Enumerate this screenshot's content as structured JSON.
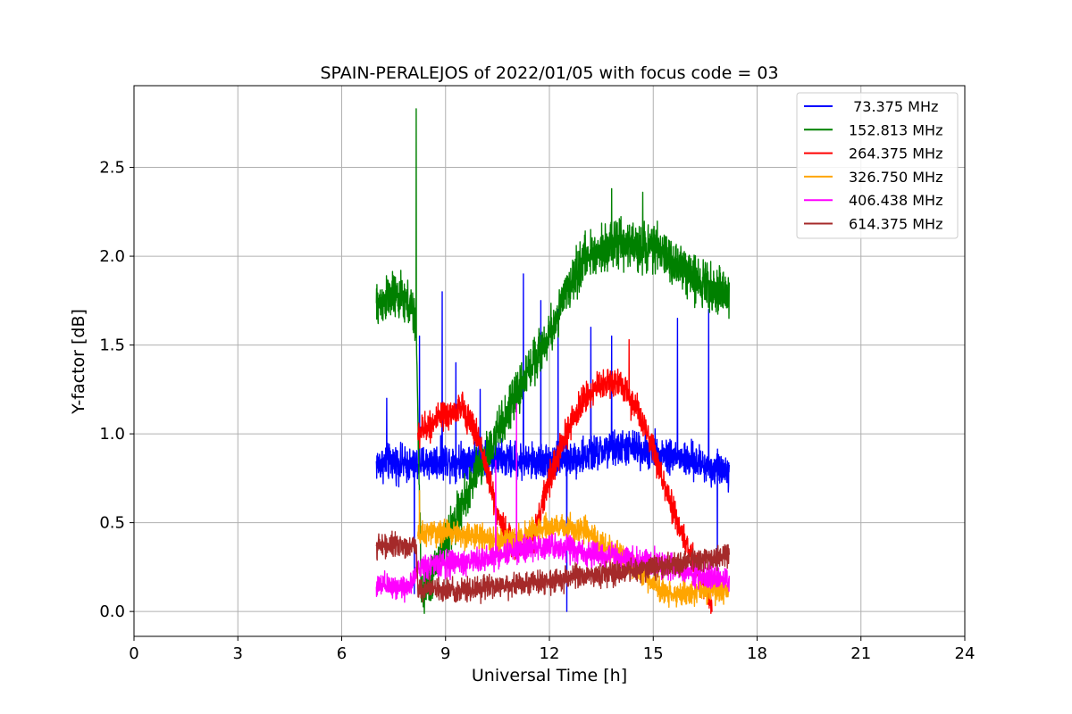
{
  "chart_data": {
    "type": "line",
    "title": "SPAIN-PERALEJOS of 2022/01/05 with focus code = 03",
    "xlabel": "Universal Time [h]",
    "ylabel": "Y-factor [dB]",
    "xlim": [
      0,
      24
    ],
    "ylim": [
      -0.14,
      2.96
    ],
    "x_ticks": [
      0,
      3,
      6,
      9,
      12,
      15,
      18,
      21,
      24
    ],
    "y_ticks": [
      0.0,
      0.5,
      1.0,
      1.5,
      2.0,
      2.5
    ],
    "x_tick_labels": [
      "0",
      "3",
      "6",
      "9",
      "12",
      "15",
      "18",
      "21",
      "24"
    ],
    "y_tick_labels": [
      "0.0",
      "0.5",
      "1.0",
      "1.5",
      "2.0",
      "2.5"
    ],
    "grid": true,
    "legend_position": "top-right",
    "series": [
      {
        "name": " 73.375 MHz",
        "color": "#0000ff",
        "x": [
          7.0,
          7.5,
          8.0,
          8.5,
          9.0,
          9.5,
          10.0,
          10.5,
          11.0,
          11.5,
          12.0,
          12.5,
          13.0,
          13.5,
          14.0,
          14.5,
          15.0,
          15.5,
          16.0,
          16.5,
          17.0,
          17.2
        ],
        "y": [
          0.83,
          0.84,
          0.82,
          0.84,
          0.85,
          0.85,
          0.87,
          0.86,
          0.85,
          0.84,
          0.85,
          0.86,
          0.87,
          0.9,
          0.92,
          0.92,
          0.9,
          0.88,
          0.85,
          0.82,
          0.8,
          0.8
        ],
        "noise": 0.07,
        "spikes": [
          [
            7.3,
            1.2
          ],
          [
            8.1,
            0.1
          ],
          [
            8.25,
            1.55
          ],
          [
            8.9,
            1.8
          ],
          [
            9.3,
            1.4
          ],
          [
            10.0,
            1.25
          ],
          [
            11.25,
            1.9
          ],
          [
            11.75,
            1.75
          ],
          [
            12.25,
            1.7
          ],
          [
            12.5,
            0.0
          ],
          [
            13.2,
            1.6
          ],
          [
            13.8,
            1.55
          ],
          [
            15.7,
            1.65
          ],
          [
            16.6,
            1.7
          ],
          [
            16.85,
            0.1
          ]
        ]
      },
      {
        "name": "152.813 MHz",
        "color": "#008000",
        "x": [
          7.0,
          7.5,
          8.0,
          8.15,
          8.3,
          8.6,
          9.0,
          9.5,
          10.0,
          10.5,
          11.0,
          11.5,
          12.0,
          12.5,
          13.0,
          13.5,
          14.0,
          14.5,
          15.0,
          15.5,
          16.0,
          16.5,
          17.0,
          17.2
        ],
        "y": [
          1.72,
          1.78,
          1.72,
          1.6,
          0.1,
          0.2,
          0.4,
          0.6,
          0.82,
          1.0,
          1.2,
          1.4,
          1.55,
          1.8,
          1.98,
          2.05,
          2.07,
          2.05,
          2.05,
          1.98,
          1.9,
          1.85,
          1.8,
          1.75
        ],
        "noise": 0.09,
        "spikes": [
          [
            8.15,
            2.83
          ],
          [
            13.8,
            2.38
          ],
          [
            14.7,
            2.36
          ]
        ]
      },
      {
        "name": "264.375 MHz",
        "color": "#ff0000",
        "x": [
          8.2,
          8.5,
          9.0,
          9.5,
          10.0,
          10.5,
          11.0,
          11.5,
          12.0,
          12.5,
          13.0,
          13.5,
          14.0,
          14.5,
          15.0,
          15.5,
          16.0,
          16.5,
          16.7
        ],
        "y": [
          1.0,
          1.05,
          1.1,
          1.15,
          0.95,
          0.55,
          0.35,
          0.4,
          0.75,
          1.0,
          1.2,
          1.28,
          1.3,
          1.15,
          0.9,
          0.6,
          0.35,
          0.15,
          0.05
        ],
        "noise": 0.06,
        "spikes": [
          [
            14.3,
            1.53
          ]
        ]
      },
      {
        "name": "326.750 MHz",
        "color": "#ffa500",
        "x": [
          8.2,
          8.5,
          9.0,
          9.5,
          10.0,
          10.5,
          11.0,
          11.5,
          12.0,
          12.5,
          13.0,
          13.5,
          14.0,
          14.5,
          15.0,
          15.5,
          16.0,
          16.5,
          17.0,
          17.2
        ],
        "y": [
          0.42,
          0.44,
          0.45,
          0.43,
          0.42,
          0.4,
          0.4,
          0.45,
          0.47,
          0.48,
          0.45,
          0.38,
          0.32,
          0.25,
          0.15,
          0.1,
          0.1,
          0.12,
          0.12,
          0.12
        ],
        "noise": 0.05,
        "spikes": [
          [
            8.25,
            0.68
          ]
        ]
      },
      {
        "name": "406.438 MHz",
        "color": "#ff00ff",
        "x": [
          7.0,
          7.5,
          8.0,
          8.2,
          9.0,
          10.0,
          11.0,
          12.0,
          12.5,
          13.0,
          14.0,
          15.0,
          16.0,
          16.5,
          17.0,
          17.2
        ],
        "y": [
          0.14,
          0.14,
          0.14,
          0.25,
          0.27,
          0.29,
          0.34,
          0.37,
          0.36,
          0.33,
          0.3,
          0.28,
          0.22,
          0.2,
          0.18,
          0.17
        ],
        "noise": 0.05,
        "spikes": [
          [
            10.45,
            0.85
          ],
          [
            11.05,
            1.17
          ]
        ]
      },
      {
        "name": "614.375 MHz",
        "color": "#a52a2a",
        "x": [
          7.0,
          7.5,
          8.0,
          8.15,
          8.2,
          9.0,
          10.0,
          11.0,
          12.0,
          13.0,
          14.0,
          15.0,
          16.0,
          16.5,
          17.0,
          17.2
        ],
        "y": [
          0.37,
          0.37,
          0.37,
          0.37,
          0.13,
          0.12,
          0.13,
          0.15,
          0.17,
          0.2,
          0.22,
          0.25,
          0.28,
          0.3,
          0.31,
          0.32
        ],
        "noise": 0.045,
        "spikes": []
      }
    ]
  }
}
